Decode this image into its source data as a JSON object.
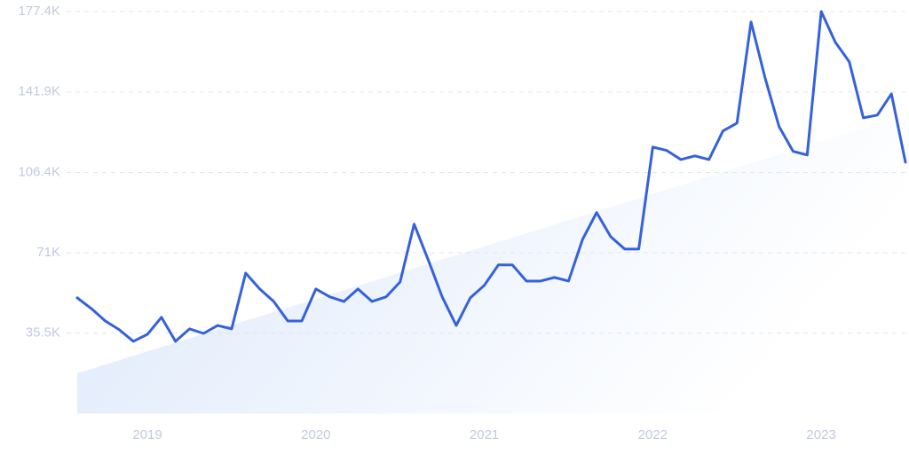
{
  "chart_data": {
    "type": "line",
    "categories": [
      null,
      null,
      null,
      null,
      null,
      "2019",
      null,
      null,
      null,
      null,
      null,
      null,
      null,
      null,
      null,
      null,
      null,
      "2020",
      null,
      null,
      null,
      null,
      null,
      null,
      null,
      null,
      null,
      null,
      null,
      "2021",
      null,
      null,
      null,
      null,
      null,
      null,
      null,
      null,
      null,
      null,
      null,
      "2022",
      null,
      null,
      null,
      null,
      null,
      null,
      null,
      null,
      null,
      null,
      null,
      "2023",
      null,
      null,
      null,
      null,
      null,
      null
    ],
    "series": [
      {
        "color": "#3561dc",
        "values": [
          51100,
          46400,
          40900,
          37000,
          31900,
          35000,
          42500,
          31900,
          37400,
          35400,
          38900,
          37400,
          62000,
          55000,
          49500,
          40900,
          40900,
          55000,
          51500,
          49500,
          55000,
          49500,
          51500,
          58100,
          83600,
          67900,
          51500,
          38900,
          51100,
          56600,
          65600,
          65600,
          58500,
          58500,
          60100,
          58500,
          76900,
          88700,
          78100,
          72600,
          72600,
          117600,
          116100,
          112100,
          113700,
          112100,
          124700,
          128200,
          172800,
          148100,
          126600,
          115700,
          114100,
          177400,
          163900,
          155200,
          130500,
          131700,
          141100,
          110900
        ]
      }
    ],
    "trend": {
      "values": [
        17800,
        131700
      ],
      "color": "#dce8fb"
    },
    "ylim": [
      0,
      177400
    ],
    "yticks": [
      {
        "value": 35500,
        "label": "35.5K"
      },
      {
        "value": 71000,
        "label": "71K"
      },
      {
        "value": 106400,
        "label": "106.4K"
      },
      {
        "value": 141900,
        "label": "141.9K"
      },
      {
        "value": 177400,
        "label": "177.4K"
      }
    ],
    "grid": true
  }
}
